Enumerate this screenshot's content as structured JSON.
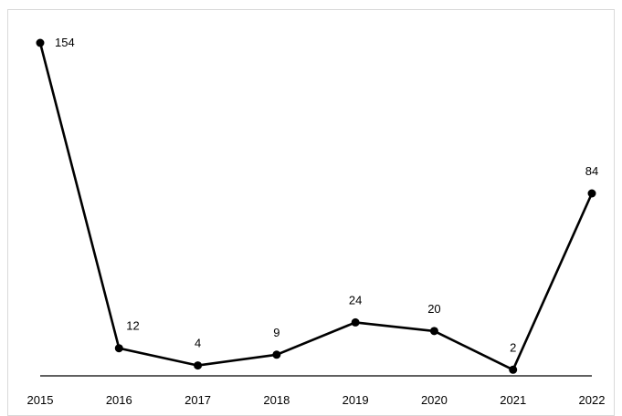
{
  "chart_data": {
    "type": "line",
    "title": "",
    "xlabel": "",
    "ylabel": "",
    "x": [
      "2015",
      "2016",
      "2017",
      "2018",
      "2019",
      "2020",
      "2021",
      "2022"
    ],
    "series": [
      {
        "values": [
          154,
          12,
          4,
          9,
          24,
          20,
          2,
          84
        ],
        "color": "#000000"
      }
    ],
    "ylim": [
      0,
      160
    ],
    "grid": false,
    "legend": "none",
    "data_labels": true,
    "markers": "circle"
  }
}
